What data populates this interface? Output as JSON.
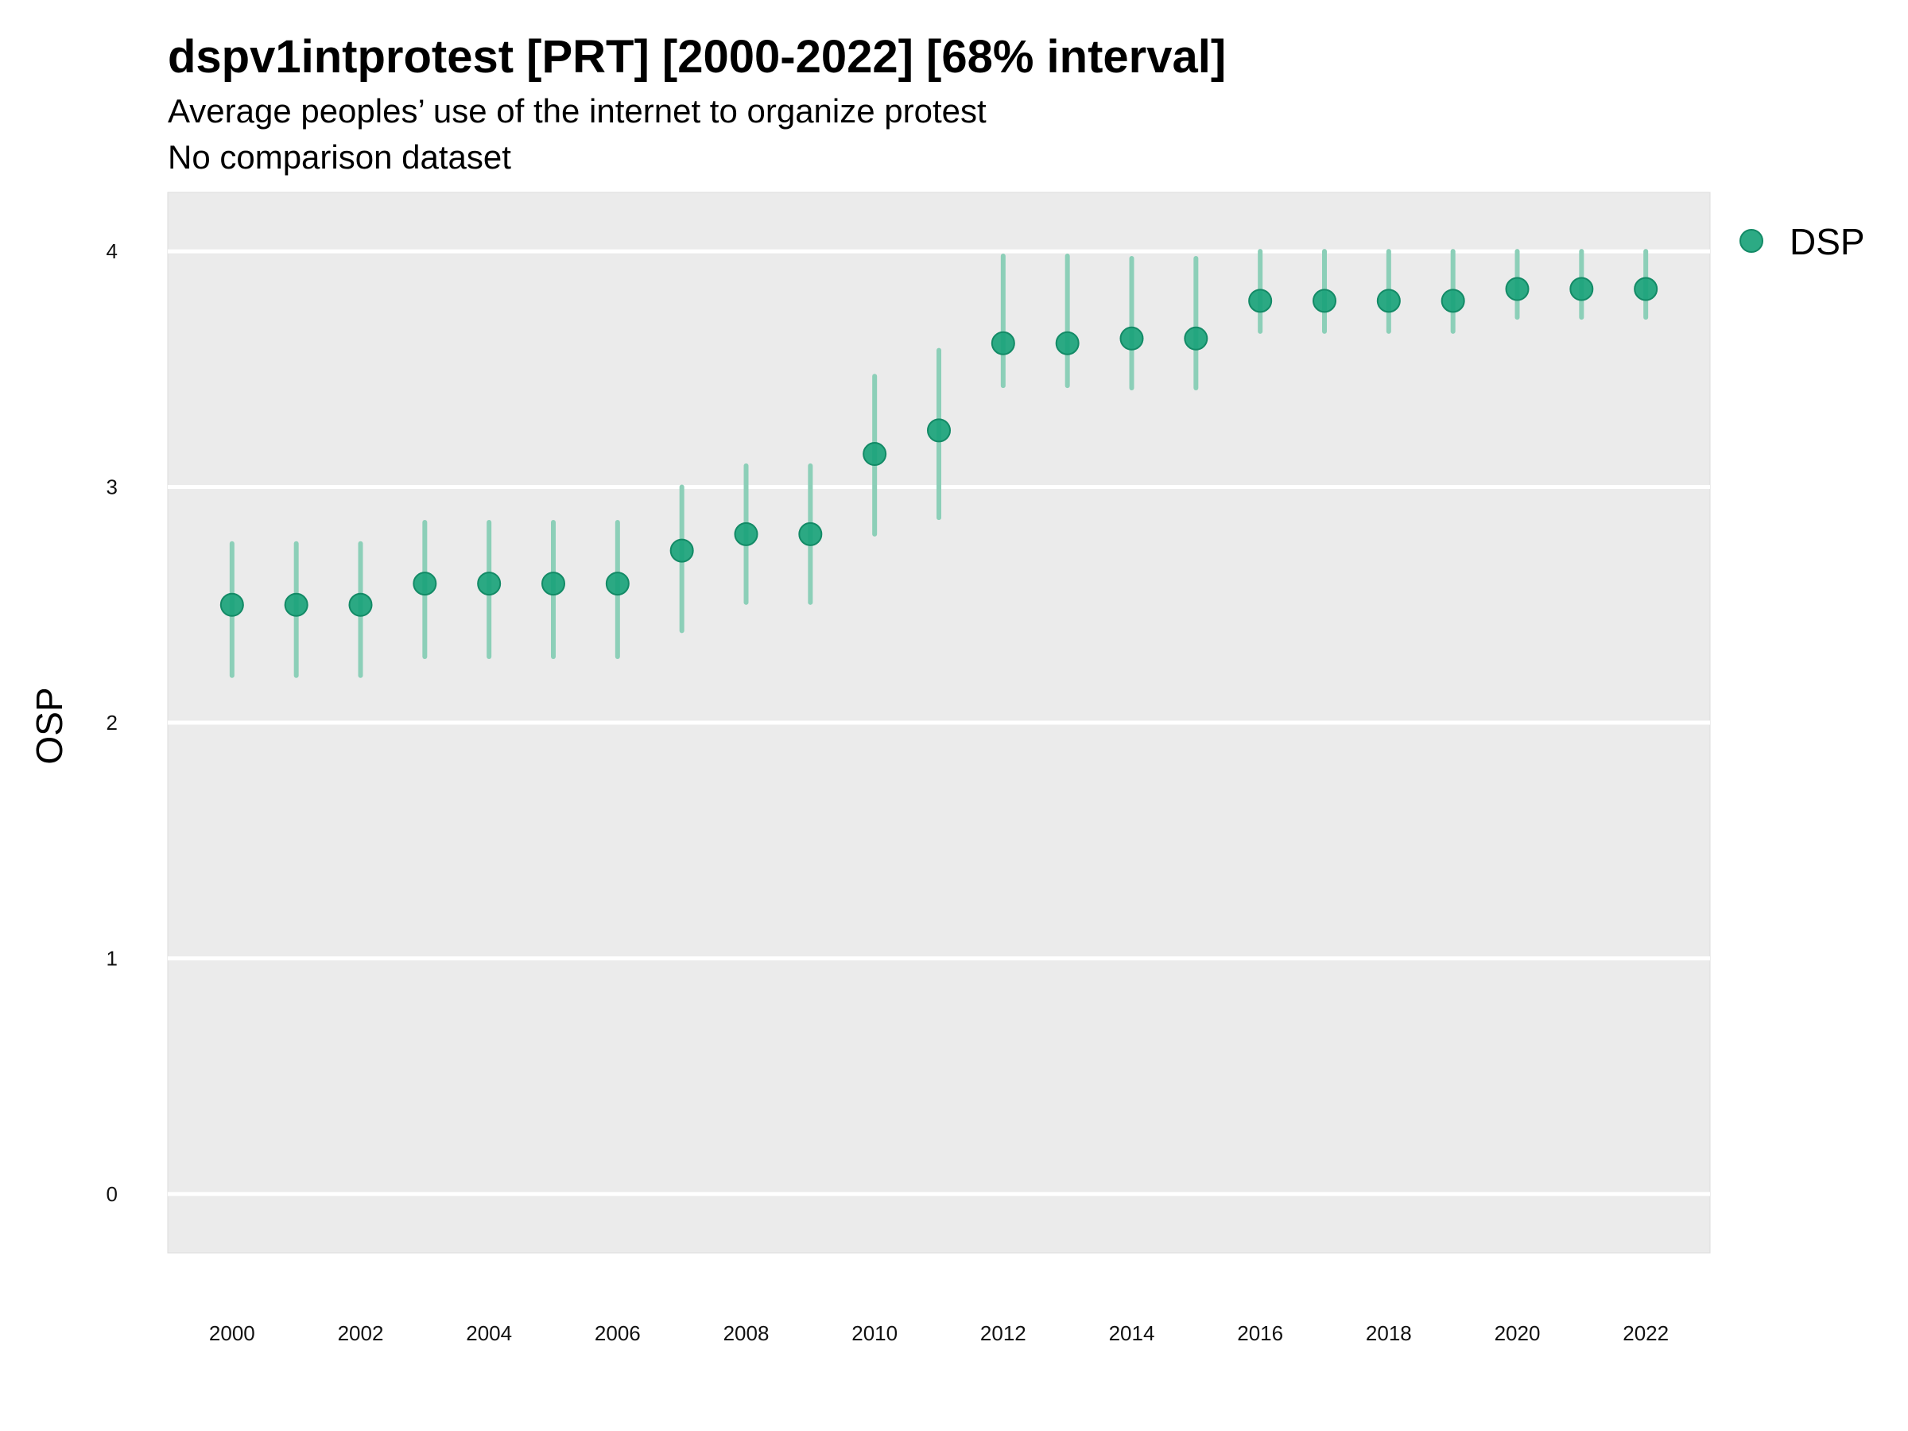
{
  "chart_data": {
    "type": "scatter",
    "title": "dspv1intprotest [PRT] [2000-2022] [68% interval]",
    "subtitle_lines": [
      "Average peoples’ use of the internet to organize protest",
      "No comparison dataset"
    ],
    "xlabel": "",
    "ylabel": "OSP",
    "xlim": [
      1999,
      2023
    ],
    "ylim": [
      -0.25,
      4.25
    ],
    "x_ticks": [
      2000,
      2002,
      2004,
      2006,
      2008,
      2010,
      2012,
      2014,
      2016,
      2018,
      2020,
      2022
    ],
    "y_ticks": [
      0,
      1,
      2,
      3,
      4
    ],
    "grid": true,
    "legend_position": "right",
    "series": [
      {
        "name": "DSP",
        "color": "#1aa37a",
        "interval_color": "#8ccfb8",
        "x": [
          2000,
          2001,
          2002,
          2003,
          2004,
          2005,
          2006,
          2007,
          2008,
          2009,
          2010,
          2011,
          2012,
          2013,
          2014,
          2015,
          2016,
          2017,
          2018,
          2019,
          2020,
          2021,
          2022
        ],
        "y": [
          2.5,
          2.5,
          2.5,
          2.59,
          2.59,
          2.59,
          2.59,
          2.73,
          2.8,
          2.8,
          3.14,
          3.24,
          3.61,
          3.61,
          3.63,
          3.63,
          3.79,
          3.79,
          3.79,
          3.79,
          3.84,
          3.84,
          3.84
        ],
        "lower": [
          2.2,
          2.2,
          2.2,
          2.28,
          2.28,
          2.28,
          2.28,
          2.39,
          2.51,
          2.51,
          2.8,
          2.87,
          3.43,
          3.43,
          3.42,
          3.42,
          3.66,
          3.66,
          3.66,
          3.66,
          3.72,
          3.72,
          3.72
        ],
        "upper": [
          2.76,
          2.76,
          2.76,
          2.85,
          2.85,
          2.85,
          2.85,
          3.0,
          3.09,
          3.09,
          3.47,
          3.58,
          3.98,
          3.98,
          3.97,
          3.97,
          4.0,
          4.0,
          4.0,
          4.0,
          4.0,
          4.0,
          4.0
        ]
      }
    ]
  }
}
